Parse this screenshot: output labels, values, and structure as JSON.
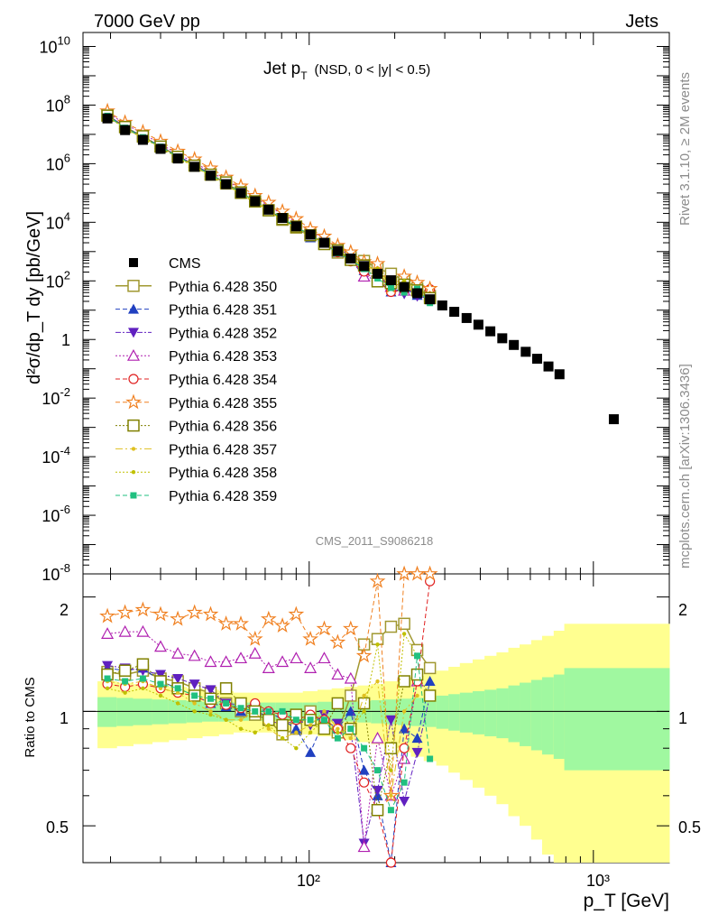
{
  "header": {
    "left_title": "7000 GeV pp",
    "right_title": "Jets",
    "plot_title_main": "Jet p",
    "plot_title_sub": "T",
    "plot_title_cuts": "(NSD,   0 < |y| < 0.5)",
    "side_label_top": "Rivet 3.1.10, ≥ 2M events",
    "side_label_bottom": "mcplots.cern.ch [arXiv:1306.3436]",
    "watermark": "CMS_2011_S9086218"
  },
  "axes": {
    "ylabel_main": "d²σ/dp_T dy [pb/GeV]",
    "ylabel_ratio": "Ratio to CMS",
    "xlabel": "p_T [GeV]",
    "x_tick_100": "10²",
    "x_tick_1000": "10³",
    "ratio_tick_05": "0.5",
    "ratio_tick_1": "1",
    "ratio_tick_2": "2"
  },
  "chart_data": {
    "type": "scatter",
    "x_scale": "log",
    "y_scale": "log",
    "xlim": [
      16,
      1850
    ],
    "ylim_main": [
      1e-08,
      30000000000.0
    ],
    "ylim_ratio": [
      0.4,
      2.3
    ],
    "x": [
      19.5,
      22.5,
      26,
      30,
      34.5,
      39.5,
      45,
      51,
      57.5,
      64.5,
      72,
      80.5,
      90,
      101,
      113,
      126,
      140,
      156,
      174,
      194,
      216,
      240,
      266,
      294,
      324,
      358,
      394,
      434,
      478,
      525,
      578,
      634,
      695,
      760,
      1180
    ],
    "cms_values": [
      35000000.0,
      14000000.0,
      6500000.0,
      3200000.0,
      1500000.0,
      780000.0,
      390000.0,
      200000.0,
      100000.0,
      52000.0,
      27000.0,
      14000.0,
      7300.0,
      3800.0,
      2000.0,
      1050.0,
      580,
      320,
      175,
      105,
      62,
      38,
      23.5,
      14.5,
      8.8,
      5.4,
      3.2,
      1.9,
      1.1,
      0.65,
      0.38,
      0.22,
      0.12,
      0.065,
      0.0019
    ],
    "legend": [
      "CMS",
      "Pythia 6.428 350",
      "Pythia 6.428 351",
      "Pythia 6.428 352",
      "Pythia 6.428 353",
      "Pythia 6.428 354",
      "Pythia 6.428 355",
      "Pythia 6.428 356",
      "Pythia 6.428 357",
      "Pythia 6.428 358",
      "Pythia 6.428 359"
    ],
    "colors": {
      "cms": "#000000",
      "350": "#a09830",
      "351": "#2040c0",
      "352": "#6020c0",
      "353": "#b020b0",
      "354": "#e02020",
      "355": "#f08020",
      "356": "#808000",
      "357": "#e0c020",
      "358": "#c0c000",
      "359": "#20c080",
      "band_inner": "#a0f8a0",
      "band_outer": "#ffff90"
    },
    "band_x_edges": [
      18,
      21,
      24,
      28,
      32,
      37,
      42,
      48,
      54,
      61,
      68,
      76,
      85,
      95,
      107,
      120,
      133,
      148,
      165,
      184,
      205,
      228,
      253,
      280,
      309,
      339,
      376,
      414,
      456,
      502,
      550,
      604,
      660,
      725,
      790,
      1850
    ],
    "band_inner_half": [
      0.09,
      0.085,
      0.08,
      0.075,
      0.07,
      0.065,
      0.06,
      0.06,
      0.055,
      0.055,
      0.055,
      0.055,
      0.055,
      0.055,
      0.06,
      0.06,
      0.06,
      0.065,
      0.07,
      0.075,
      0.08,
      0.085,
      0.09,
      0.1,
      0.11,
      0.12,
      0.13,
      0.14,
      0.15,
      0.17,
      0.19,
      0.21,
      0.23,
      0.25,
      0.3
    ],
    "band_outer_half": [
      0.2,
      0.19,
      0.18,
      0.17,
      0.16,
      0.15,
      0.14,
      0.13,
      0.12,
      0.12,
      0.12,
      0.12,
      0.12,
      0.13,
      0.14,
      0.15,
      0.16,
      0.17,
      0.18,
      0.2,
      0.22,
      0.24,
      0.26,
      0.28,
      0.31,
      0.34,
      0.37,
      0.4,
      0.43,
      0.47,
      0.5,
      0.54,
      0.58,
      0.63,
      0.7
    ],
    "series": [
      {
        "name": "Pythia 6.428 350",
        "ratio": [
          1.27,
          1.25,
          1.28,
          1.22,
          1.2,
          1.15,
          1.12,
          1.05,
          1.0,
          0.98,
          0.95,
          0.87,
          0.9,
          1.0,
          0.92,
          0.88,
          1.1,
          1.5,
          1.55,
          1.67,
          1.7,
          1.45,
          1.3
        ]
      },
      {
        "name": "Pythia 6.428 351",
        "ratio": [
          1.3,
          1.28,
          1.3,
          1.2,
          1.15,
          1.1,
          1.05,
          1.03,
          1.0,
          1.02,
          1.0,
          0.95,
          0.9,
          0.78,
          0.95,
          0.9,
          1.0,
          0.7,
          0.6,
          0.4,
          0.9,
          0.85,
          1.2
        ]
      },
      {
        "name": "Pythia 6.428 352",
        "ratio": [
          1.32,
          1.3,
          1.28,
          1.25,
          1.22,
          1.18,
          1.14,
          1.05,
          1.04,
          1.02,
          0.95,
          0.92,
          0.95,
          0.92,
          0.98,
          0.93,
          0.9,
          0.45,
          0.62,
          0.95,
          0.58,
          0.78,
          1.1
        ]
      },
      {
        "name": "Pythia 6.428 353",
        "ratio": [
          1.6,
          1.62,
          1.62,
          1.48,
          1.42,
          1.4,
          1.35,
          1.35,
          1.38,
          1.42,
          1.3,
          1.35,
          1.38,
          1.3,
          1.38,
          1.25,
          1.22,
          0.44,
          0.85,
          0.6,
          0.75,
          1.2
        ]
      },
      {
        "name": "Pythia 6.428 354",
        "ratio": [
          1.18,
          1.16,
          1.18,
          1.15,
          1.12,
          1.1,
          1.05,
          1.04,
          1.02,
          1.05,
          1.0,
          0.98,
          0.95,
          0.98,
          0.95,
          0.9,
          0.8,
          0.65,
          0.55,
          0.4,
          0.8,
          1.2,
          2.2
        ]
      },
      {
        "name": "Pythia 6.428 355",
        "ratio": [
          1.78,
          1.82,
          1.85,
          1.8,
          1.75,
          1.82,
          1.8,
          1.7,
          1.7,
          1.55,
          1.75,
          1.68,
          1.8,
          1.55,
          1.65,
          1.52,
          1.65,
          1.4,
          2.2,
          0.6,
          2.3,
          2.3,
          2.3
        ]
      },
      {
        "name": "Pythia 6.428 356",
        "ratio": [
          1.25,
          1.28,
          1.33,
          1.2,
          1.15,
          1.1,
          1.08,
          1.15,
          1.05,
          1.0,
          0.95,
          0.92,
          0.98,
          0.95,
          0.9,
          1.05,
          0.9,
          1.05,
          0.55,
          0.8,
          1.2,
          1.25,
          1.1
        ]
      },
      {
        "name": "Pythia 6.428 357",
        "ratio": [
          1.2,
          1.18,
          1.2,
          1.15,
          1.12,
          1.05,
          1.0,
          0.95,
          0.95,
          1.0,
          0.9,
          0.85,
          0.88,
          0.92,
          1.0,
          0.9,
          0.85,
          1.1,
          1.2,
          0.6,
          1.0,
          1.1
        ]
      },
      {
        "name": "Pythia 6.428 358",
        "ratio": [
          1.15,
          1.12,
          1.15,
          1.1,
          1.05,
          1.0,
          0.98,
          0.95,
          0.9,
          0.88,
          0.92,
          0.85,
          0.8,
          0.88,
          0.95,
          0.88,
          0.9,
          1.0,
          1.5,
          0.7,
          1.6,
          1.4
        ]
      },
      {
        "name": "Pythia 6.428 359",
        "ratio": [
          1.22,
          1.2,
          1.22,
          1.18,
          1.15,
          1.1,
          1.08,
          1.05,
          1.02,
          1.0,
          1.0,
          1.0,
          0.95,
          0.95,
          0.95,
          0.85,
          0.9,
          0.8,
          0.7,
          0.55,
          0.65,
          1.4,
          0.75
        ]
      }
    ]
  }
}
